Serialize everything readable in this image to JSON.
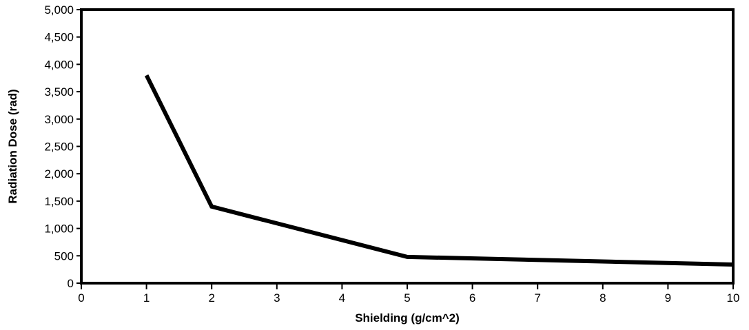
{
  "chart_data": {
    "type": "line",
    "xlabel": "Shielding (g/cm^2)",
    "ylabel": "Radiation Dose (rad)",
    "x_axis": {
      "range": [
        0,
        10
      ],
      "ticks": [
        0,
        1,
        2,
        3,
        4,
        5,
        6,
        7,
        8,
        9,
        10
      ],
      "tick_labels": [
        "0",
        "1",
        "2",
        "3",
        "4",
        "5",
        "6",
        "7",
        "8",
        "9",
        "10"
      ]
    },
    "y_axis": {
      "range": [
        0,
        5000
      ],
      "ticks": [
        0,
        500,
        1000,
        1500,
        2000,
        2500,
        3000,
        3500,
        4000,
        4500,
        5000
      ],
      "tick_labels": [
        "0",
        "500",
        "1,000",
        "1,500",
        "2,000",
        "2,500",
        "3,000",
        "3,500",
        "4,000",
        "4,500",
        "5,000"
      ]
    },
    "grid": false,
    "legend": "none",
    "series": [
      {
        "color": "#000000",
        "points": [
          {
            "x": 1,
            "y": 3800
          },
          {
            "x": 2,
            "y": 1400
          },
          {
            "x": 5,
            "y": 480
          },
          {
            "x": 10,
            "y": 340
          }
        ]
      }
    ]
  }
}
